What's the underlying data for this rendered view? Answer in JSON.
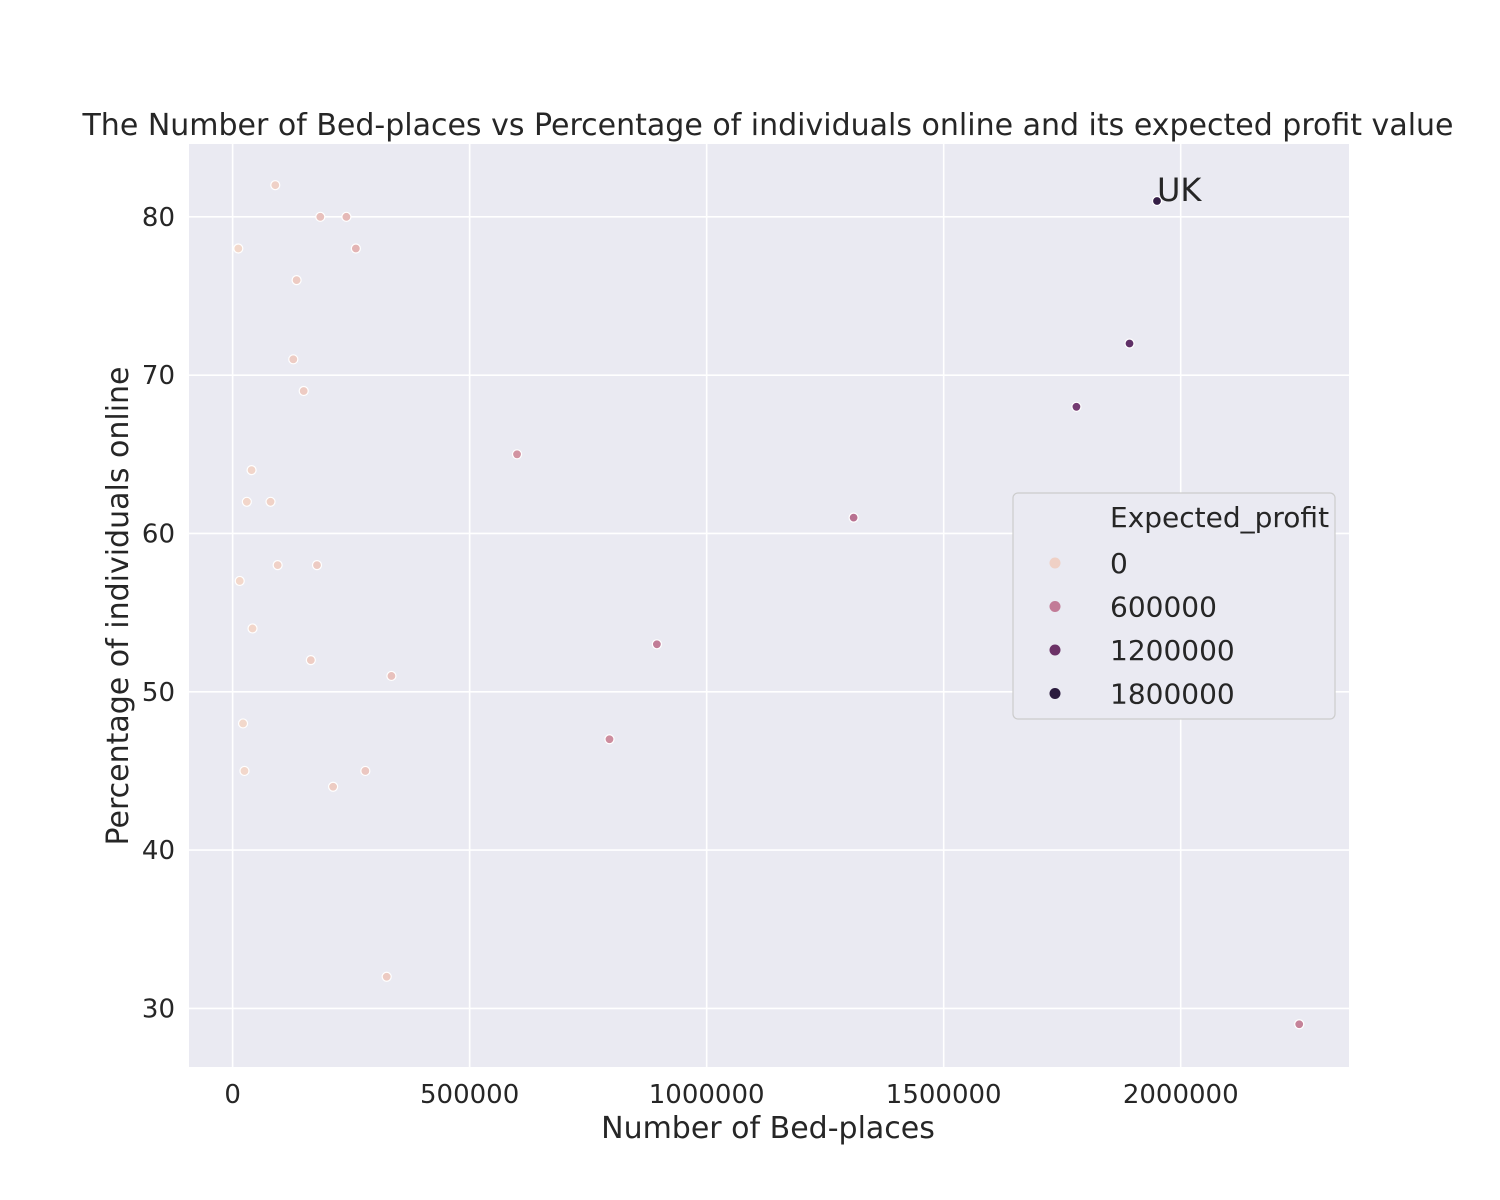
{
  "chart_data": {
    "type": "scatter",
    "title": "The Number of Bed-places vs Percentage of individuals online and its expected profit value",
    "xlabel": "Number of Bed-places",
    "ylabel": "Percentage of individuals online",
    "xlim": [
      -92000,
      2355000
    ],
    "ylim": [
      26.3,
      84.6
    ],
    "xticks": [
      0,
      500000,
      1000000,
      1500000,
      2000000
    ],
    "xtick_labels": [
      "0",
      "500000",
      "1000000",
      "1500000",
      "2000000"
    ],
    "yticks": [
      30,
      40,
      50,
      60,
      70,
      80
    ],
    "ytick_labels": [
      "30",
      "40",
      "50",
      "60",
      "70",
      "80"
    ],
    "grid": true,
    "hue_variable": "Expected_profit",
    "legend": {
      "title": "Expected_profit",
      "placement": "center-right",
      "entries": [
        {
          "label": "0",
          "color": "#efd0c5"
        },
        {
          "label": "600000",
          "color": "#c27b97"
        },
        {
          "label": "1200000",
          "color": "#6c3267"
        },
        {
          "label": "1800000",
          "color": "#2a1a3d"
        }
      ]
    },
    "color_scale": {
      "min": 0,
      "max": 2100000,
      "stops": [
        [
          0,
          "#f3d9cc"
        ],
        [
          0.2,
          "#d99ea6"
        ],
        [
          0.4,
          "#b56c8f"
        ],
        [
          0.6,
          "#85447a"
        ],
        [
          0.8,
          "#562b62"
        ],
        [
          1.0,
          "#2a1a3d"
        ]
      ]
    },
    "points": [
      {
        "x": 90000,
        "y": 82,
        "profit": 60000
      },
      {
        "x": 185000,
        "y": 80,
        "profit": 180000
      },
      {
        "x": 240000,
        "y": 80,
        "profit": 230000
      },
      {
        "x": 12000,
        "y": 78,
        "profit": 10000
      },
      {
        "x": 260000,
        "y": 78,
        "profit": 260000
      },
      {
        "x": 135000,
        "y": 76,
        "profit": 100000
      },
      {
        "x": 128000,
        "y": 71,
        "profit": 90000
      },
      {
        "x": 150000,
        "y": 69,
        "profit": 100000
      },
      {
        "x": 600000,
        "y": 65,
        "profit": 500000
      },
      {
        "x": 40000,
        "y": 64,
        "profit": 25000
      },
      {
        "x": 30000,
        "y": 62,
        "profit": 18000
      },
      {
        "x": 80000,
        "y": 62,
        "profit": 50000
      },
      {
        "x": 95000,
        "y": 58,
        "profit": 55000
      },
      {
        "x": 178000,
        "y": 58,
        "profit": 100000
      },
      {
        "x": 15000,
        "y": 57,
        "profit": 8000
      },
      {
        "x": 42000,
        "y": 54,
        "profit": 22000
      },
      {
        "x": 165000,
        "y": 52,
        "profit": 85000
      },
      {
        "x": 335000,
        "y": 51,
        "profit": 170000
      },
      {
        "x": 22000,
        "y": 48,
        "profit": 10000
      },
      {
        "x": 25000,
        "y": 45,
        "profit": 11000
      },
      {
        "x": 280000,
        "y": 45,
        "profit": 125000
      },
      {
        "x": 212000,
        "y": 44,
        "profit": 95000
      },
      {
        "x": 325000,
        "y": 32,
        "profit": 100000
      },
      {
        "x": 795000,
        "y": 47,
        "profit": 560000
      },
      {
        "x": 895000,
        "y": 53,
        "profit": 700000
      },
      {
        "x": 1310000,
        "y": 61,
        "profit": 800000
      },
      {
        "x": 1780000,
        "y": 68,
        "profit": 1420000
      },
      {
        "x": 1892000,
        "y": 72,
        "profit": 1600000
      },
      {
        "x": 1950000,
        "y": 81,
        "profit": 2000000
      },
      {
        "x": 2250000,
        "y": 29,
        "profit": 650000
      }
    ],
    "annotations": [
      {
        "text": "UK",
        "x": 1950000,
        "y": 81
      }
    ]
  }
}
